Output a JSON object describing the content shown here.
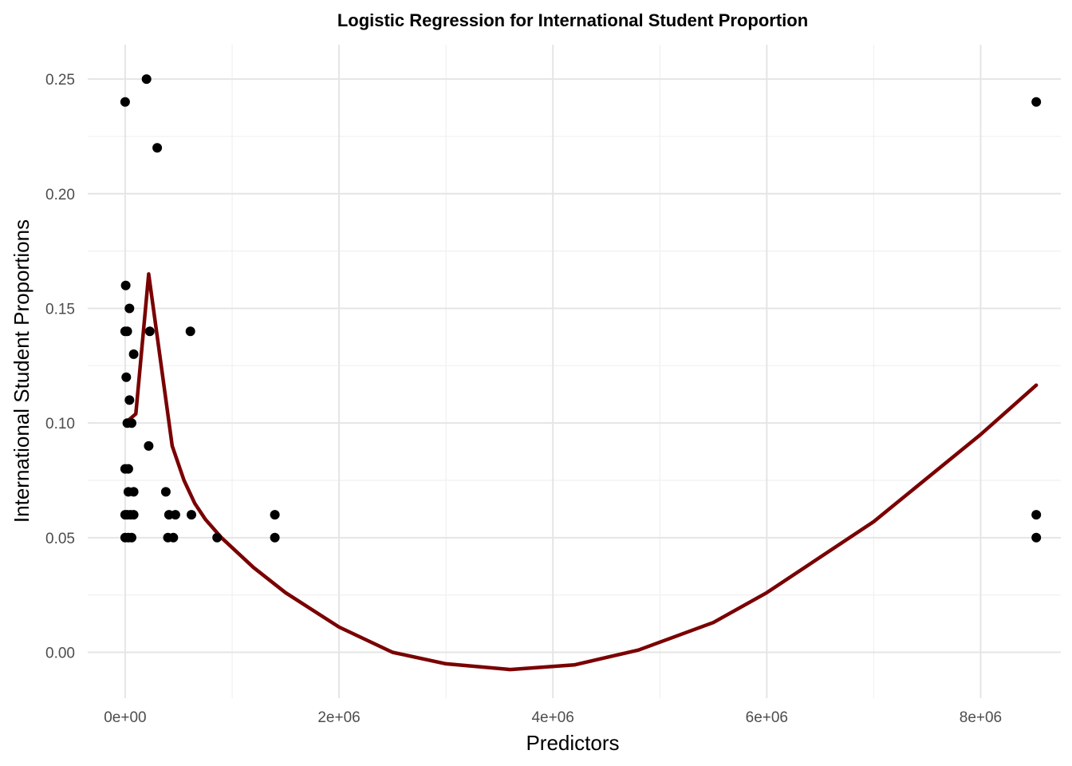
{
  "chart_data": {
    "type": "scatter",
    "title": "Logistic Regression for International Student Proportion",
    "xlabel": "Predictors",
    "ylabel": "International Student Proportions",
    "xlim": [
      -350000,
      8750000
    ],
    "ylim": [
      -0.02,
      0.265
    ],
    "x_ticks": [
      0,
      2000000,
      4000000,
      6000000,
      8000000
    ],
    "x_tick_labels": [
      "0e+00",
      "2e+06",
      "4e+06",
      "6e+06",
      "8e+06"
    ],
    "y_ticks": [
      0.0,
      0.05,
      0.1,
      0.15,
      0.2,
      0.25
    ],
    "y_tick_labels": [
      "0.00",
      "0.05",
      "0.10",
      "0.15",
      "0.20",
      "0.25"
    ],
    "grid": true,
    "colors": {
      "points": "#000000",
      "line": "#7a0000",
      "grid": "#e5e5e5"
    },
    "series": [
      {
        "type": "scatter",
        "points": [
          [
            0,
            0.24
          ],
          [
            200000,
            0.25
          ],
          [
            300000,
            0.22
          ],
          [
            5000,
            0.16
          ],
          [
            40000,
            0.15
          ],
          [
            0,
            0.14
          ],
          [
            20000,
            0.14
          ],
          [
            230000,
            0.14
          ],
          [
            610000,
            0.14
          ],
          [
            80000,
            0.13
          ],
          [
            10000,
            0.12
          ],
          [
            40000,
            0.11
          ],
          [
            20000,
            0.1
          ],
          [
            60000,
            0.1
          ],
          [
            220000,
            0.09
          ],
          [
            0,
            0.08
          ],
          [
            30000,
            0.08
          ],
          [
            30000,
            0.07
          ],
          [
            80000,
            0.07
          ],
          [
            380000,
            0.07
          ],
          [
            0,
            0.06
          ],
          [
            20000,
            0.06
          ],
          [
            50000,
            0.06
          ],
          [
            80000,
            0.06
          ],
          [
            410000,
            0.06
          ],
          [
            470000,
            0.06
          ],
          [
            620000,
            0.06
          ],
          [
            1400000,
            0.06
          ],
          [
            8520000,
            0.06
          ],
          [
            0,
            0.05
          ],
          [
            30000,
            0.05
          ],
          [
            60000,
            0.05
          ],
          [
            400000,
            0.05
          ],
          [
            450000,
            0.05
          ],
          [
            860000,
            0.05
          ],
          [
            1400000,
            0.05
          ],
          [
            8520000,
            0.05
          ],
          [
            8520000,
            0.24
          ]
        ]
      },
      {
        "type": "line",
        "points": [
          [
            0,
            0.1
          ],
          [
            100000,
            0.104
          ],
          [
            220000,
            0.165
          ],
          [
            440000,
            0.09
          ],
          [
            550000,
            0.075
          ],
          [
            650000,
            0.065
          ],
          [
            750000,
            0.058
          ],
          [
            900000,
            0.05
          ],
          [
            1200000,
            0.037
          ],
          [
            1500000,
            0.026
          ],
          [
            2000000,
            0.011
          ],
          [
            2500000,
            0.0
          ],
          [
            3000000,
            -0.005
          ],
          [
            3600000,
            -0.0075
          ],
          [
            4200000,
            -0.0055
          ],
          [
            4800000,
            0.001
          ],
          [
            5500000,
            0.013
          ],
          [
            6000000,
            0.026
          ],
          [
            7000000,
            0.057
          ],
          [
            8000000,
            0.095
          ],
          [
            8520000,
            0.1165
          ]
        ]
      }
    ]
  }
}
